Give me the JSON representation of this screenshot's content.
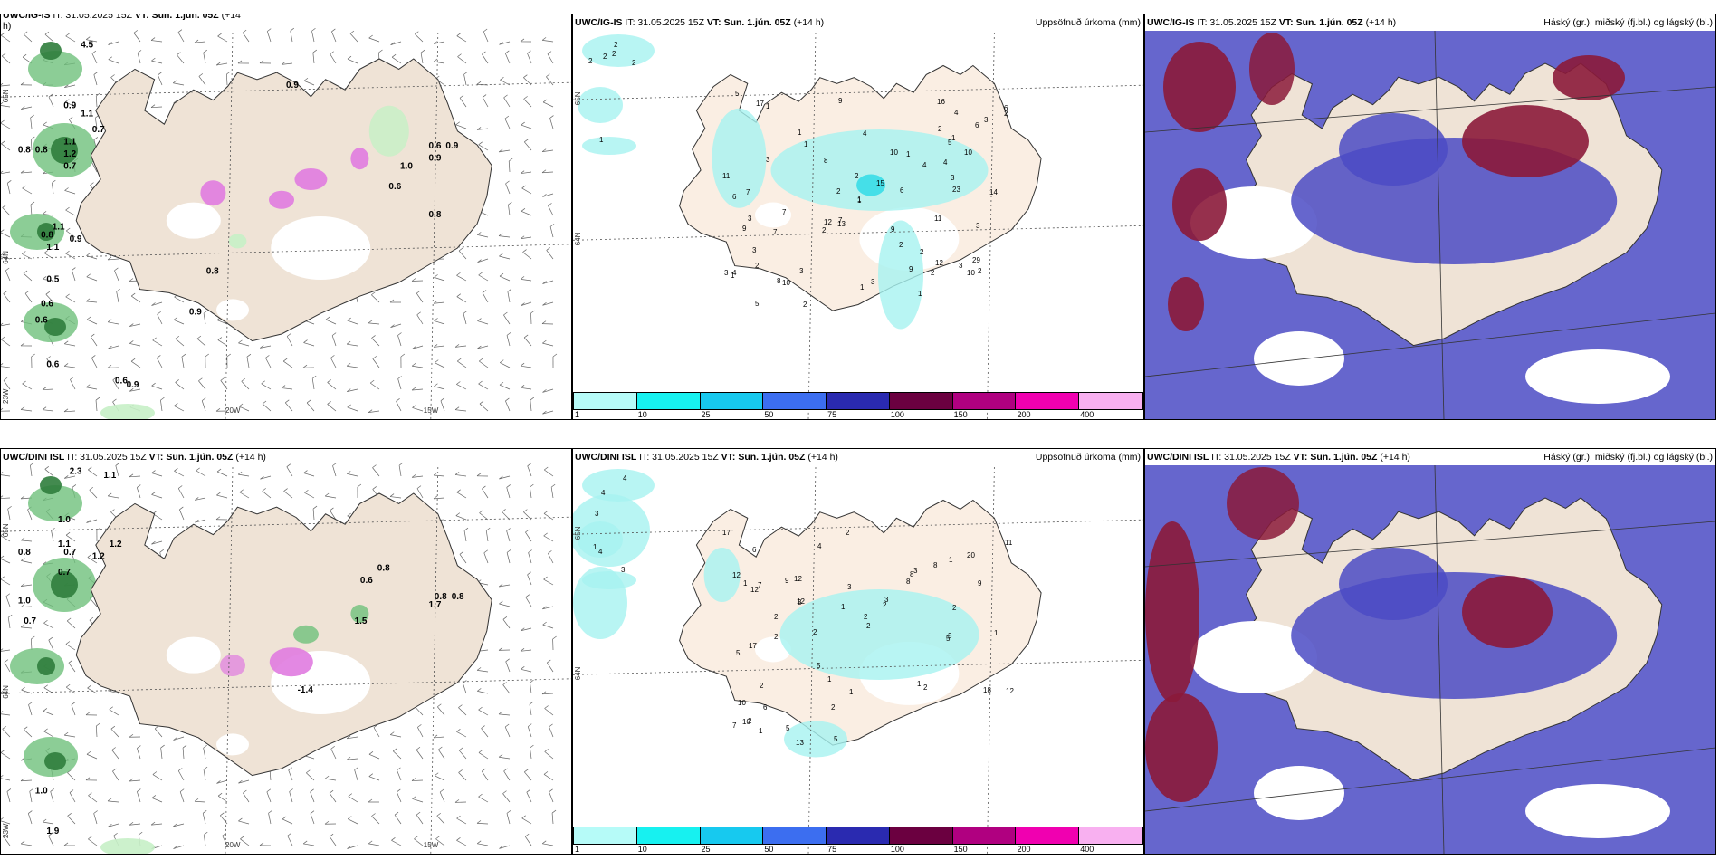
{
  "colors": {
    "land": "#efe3d6",
    "land_light": "#faeee3",
    "sea": "#ffffff",
    "precip_green_dark": "#2f7d3c",
    "precip_green": "#6fc07c",
    "precip_green_light": "#c6f0c6",
    "precip_magenta": "#e07be0",
    "cloud_high": "#8b1a3a",
    "cloud_mid": "#4b4bc4",
    "cloud_low": "#6e6ee6",
    "accum_cyan": "#a6f3f0",
    "accum_cyan2": "#28d9e6"
  },
  "row1": {
    "p1": {
      "title_bold": "UWC/IG-IS",
      "title_rest": " IT: 31.05.2025 15Z ",
      "vt_bold": "VT: Sun. 1.jún. 05Z",
      "title_tail": " (+14",
      "title_tail2": "h)",
      "labels": [
        "4.5",
        "0.9",
        "0.9",
        "1.1",
        "0.7",
        "0.8",
        "0.8",
        "1.1",
        "1.2",
        "0.7",
        "0.9",
        "1.0",
        "0.6",
        "1.1",
        "0.8",
        "0.9",
        "1.1",
        "0.5",
        "0.6",
        "0.6",
        "0.6",
        "0.6",
        "0.9",
        "0.8",
        "0.9",
        "0.6",
        "0.9",
        "0.8"
      ],
      "grid": {
        "lon": [
          "20W",
          "15W"
        ],
        "lat": [
          "65N",
          "64N",
          "23W"
        ]
      }
    },
    "p2": {
      "title_bold": "UWC/IG-IS",
      "title_rest": " IT: 31.05.2025 15Z ",
      "vt_bold": "VT: Sun. 1.jún. 05Z",
      "title_tail": " (+14 h)",
      "right_title": "Uppsöfnuð úrkoma (mm)",
      "values": [
        "2",
        "2",
        "2",
        "2",
        "1",
        "2",
        "1",
        "2",
        "1",
        "1",
        "2",
        "2",
        "1",
        "3",
        "4",
        "3",
        "4",
        "6",
        "6",
        "2",
        "3",
        "6",
        "7",
        "1",
        "2",
        "3",
        "12",
        "9",
        "7",
        "3",
        "5",
        "11",
        "9",
        "3",
        "4",
        "9",
        "10",
        "10",
        "6",
        "15",
        "16",
        "10",
        "10",
        "7",
        "11",
        "7",
        "8",
        "4",
        "29",
        "13",
        "3",
        "3",
        "5",
        "23",
        "4",
        "2",
        "1",
        "17",
        "2",
        "8",
        "12",
        "14",
        "5",
        "2",
        "9",
        "3",
        "1",
        "1",
        "2",
        "3",
        "2",
        "1",
        "1",
        "2"
      ],
      "grid": {
        "lat": [
          "65N",
          "64N"
        ]
      }
    },
    "p3": {
      "title_bold": "UWC/IG-IS",
      "title_rest": " IT: 31.05.2025 15Z ",
      "vt_bold": "VT: Sun. 1.jún. 05Z",
      "title_tail": " (+14 h)",
      "right_title": "Háský (gr.), miðský (fj.bl.) og lágský (bl.)"
    }
  },
  "row2": {
    "p1": {
      "title_bold": "UWC/DINI ISL",
      "title_rest": " IT: 31.05.2025 15Z ",
      "vt_bold": "VT: Sun. 1.jún. 05Z",
      "title_tail": " (+14 h)",
      "labels": [
        "2.3",
        "1.1",
        "1.0",
        "1.1",
        "0.7",
        "1.2",
        "0.7",
        "1.2",
        "0.8",
        "1.0",
        "0.7",
        "0.8",
        "0.6",
        "0.8",
        "1.7",
        "1.5",
        "0.8",
        "-1.4",
        "1.0",
        "1.9"
      ],
      "grid": {
        "lon": [
          "20W",
          "15W"
        ],
        "lat": [
          "65N",
          "64N",
          "23W"
        ]
      }
    },
    "p2": {
      "title_bold": "UWC/DINI ISL",
      "title_rest": " IT: 31.05.2025 15Z ",
      "vt_bold": "VT: Sun. 1.jún. 05Z",
      "title_tail": " (+14 h)",
      "right_title": "Uppsöfnuð úrkoma (mm)",
      "values": [
        "4",
        "4",
        "4",
        "3",
        "3",
        "1",
        "1",
        "2",
        "2",
        "3",
        "5",
        "5",
        "3",
        "5",
        "2",
        "1",
        "6",
        "5",
        "3",
        "2",
        "1",
        "1",
        "2",
        "1",
        "1",
        "12",
        "8",
        "7",
        "9",
        "12",
        "17",
        "10",
        "12",
        "17",
        "9",
        "6",
        "8",
        "7",
        "10",
        "12",
        "20",
        "12",
        "11",
        "8",
        "3",
        "13",
        "5",
        "2",
        "1",
        "2",
        "2",
        "3",
        "4",
        "18",
        "2",
        "2",
        "1",
        "2",
        "2"
      ],
      "grid": {
        "lat": [
          "65N",
          "64N"
        ]
      }
    },
    "p3": {
      "title_bold": "UWC/DINI ISL",
      "title_rest": " IT: 31.05.2025 15Z ",
      "vt_bold": "VT: Sun. 1.jún. 05Z",
      "title_tail": " (+14 h)",
      "right_title": "Háský (gr.), miðský (fj.bl.) og lágský (bl.)"
    }
  },
  "colorbar": {
    "ticks": [
      "1",
      "10",
      "25",
      "50",
      "75",
      "100",
      "150",
      "200",
      "400"
    ],
    "colors": [
      "#b6fbf8",
      "#17f1f0",
      "#17c9ef",
      "#3c6ef0",
      "#2a2ab0",
      "#6b0040",
      "#b00080",
      "#f000b0",
      "#f8b0f0"
    ]
  }
}
